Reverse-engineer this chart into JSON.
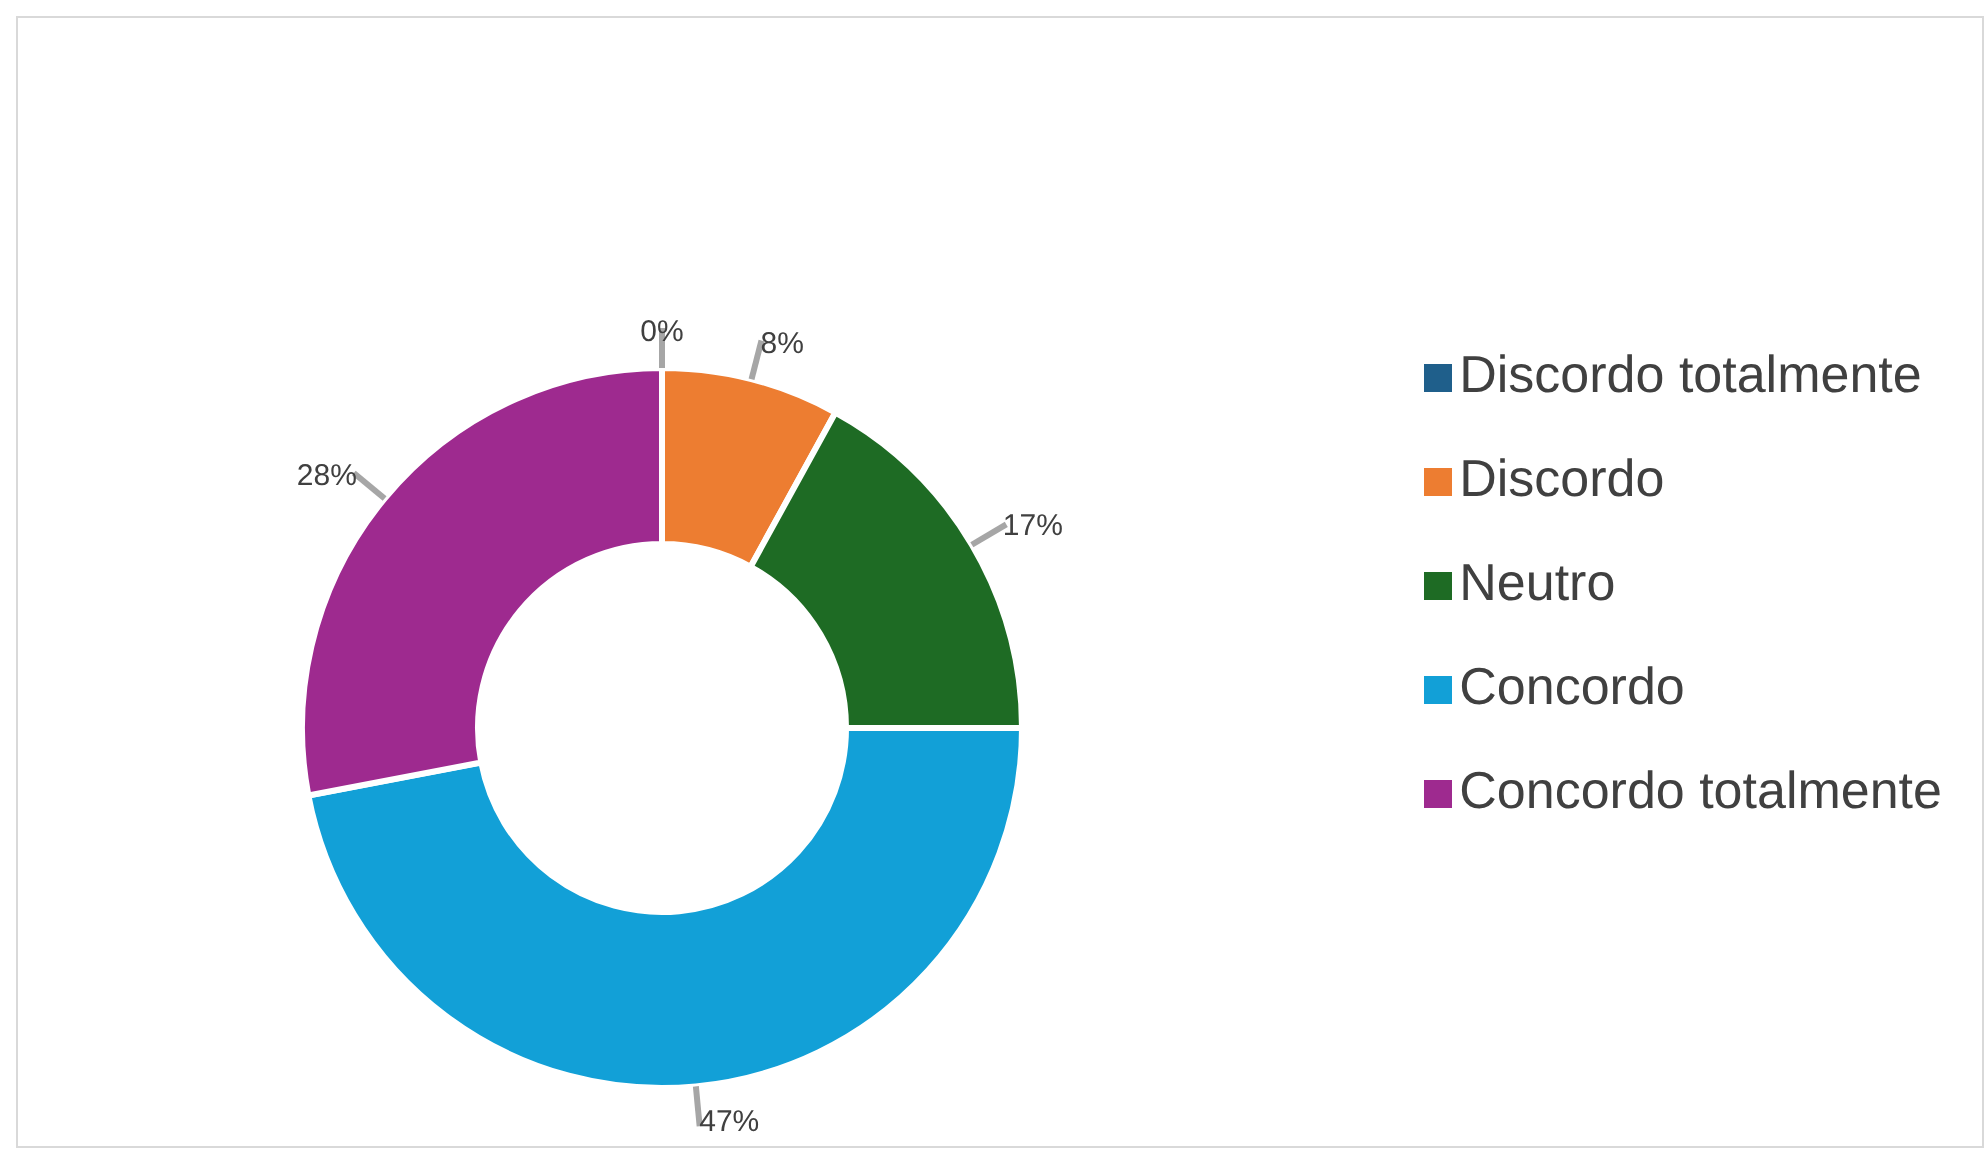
{
  "chart_data": {
    "type": "donut",
    "categories": [
      "Discordo totalmente",
      "Discordo",
      "Neutro",
      "Concordo",
      "Concordo totalmente"
    ],
    "values": [
      0,
      8,
      17,
      47,
      28
    ],
    "value_labels": [
      "0%",
      "8%",
      "17%",
      "47%",
      "28%"
    ],
    "colors": [
      "#1f5f8b",
      "#ed7d31",
      "#1e6b24",
      "#12a0d7",
      "#9e2a8f"
    ],
    "legend": "right"
  }
}
